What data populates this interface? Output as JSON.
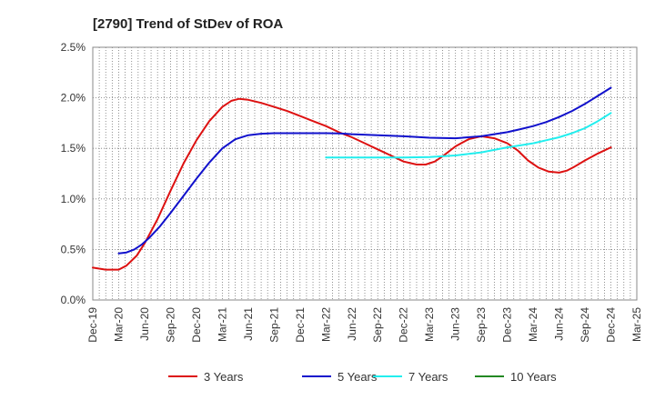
{
  "chart_data": {
    "type": "line",
    "title": "[2790]  Trend of StDev of ROA",
    "xlabel": "",
    "ylabel": "",
    "x_categories": [
      "Dec-19",
      "Mar-20",
      "Jun-20",
      "Sep-20",
      "Dec-20",
      "Mar-21",
      "Jun-21",
      "Sep-21",
      "Dec-21",
      "Mar-22",
      "Jun-22",
      "Sep-22",
      "Dec-22",
      "Mar-23",
      "Jun-23",
      "Sep-23",
      "Dec-23",
      "Mar-24",
      "Jun-24",
      "Sep-24",
      "Dec-24",
      "Mar-25"
    ],
    "y_ticks": [
      "0.0%",
      "0.5%",
      "1.0%",
      "1.5%",
      "2.0%",
      "2.5%"
    ],
    "ylim": [
      0,
      2.5
    ],
    "grid": true,
    "legend_position": "bottom",
    "series": [
      {
        "name": "3 Years",
        "color": "#dd1111",
        "points": [
          [
            0,
            0.32
          ],
          [
            0.5,
            0.3
          ],
          [
            1,
            0.3
          ],
          [
            1.3,
            0.34
          ],
          [
            1.7,
            0.44
          ],
          [
            2,
            0.56
          ],
          [
            2.5,
            0.8
          ],
          [
            3,
            1.08
          ],
          [
            3.5,
            1.35
          ],
          [
            4,
            1.58
          ],
          [
            4.5,
            1.77
          ],
          [
            5,
            1.91
          ],
          [
            5.35,
            1.97
          ],
          [
            5.65,
            1.99
          ],
          [
            6,
            1.98
          ],
          [
            6.5,
            1.95
          ],
          [
            7,
            1.91
          ],
          [
            7.5,
            1.87
          ],
          [
            8,
            1.82
          ],
          [
            8.5,
            1.77
          ],
          [
            9,
            1.72
          ],
          [
            9.5,
            1.66
          ],
          [
            10,
            1.61
          ],
          [
            10.5,
            1.55
          ],
          [
            11,
            1.49
          ],
          [
            11.5,
            1.43
          ],
          [
            12,
            1.37
          ],
          [
            12.5,
            1.34
          ],
          [
            12.85,
            1.34
          ],
          [
            13.2,
            1.37
          ],
          [
            13.5,
            1.42
          ],
          [
            14,
            1.52
          ],
          [
            14.5,
            1.59
          ],
          [
            15,
            1.62
          ],
          [
            15.5,
            1.6
          ],
          [
            16,
            1.55
          ],
          [
            16.4,
            1.48
          ],
          [
            16.8,
            1.38
          ],
          [
            17.2,
            1.31
          ],
          [
            17.6,
            1.27
          ],
          [
            18,
            1.26
          ],
          [
            18.3,
            1.28
          ],
          [
            18.6,
            1.32
          ],
          [
            19,
            1.38
          ],
          [
            19.5,
            1.45
          ],
          [
            20,
            1.51
          ]
        ]
      },
      {
        "name": "5 Years",
        "color": "#1111cc",
        "points": [
          [
            1,
            0.46
          ],
          [
            1.3,
            0.47
          ],
          [
            1.6,
            0.5
          ],
          [
            1.9,
            0.55
          ],
          [
            2.2,
            0.62
          ],
          [
            2.6,
            0.73
          ],
          [
            3,
            0.86
          ],
          [
            3.5,
            1.03
          ],
          [
            4,
            1.2
          ],
          [
            4.5,
            1.36
          ],
          [
            5,
            1.5
          ],
          [
            5.5,
            1.59
          ],
          [
            6,
            1.63
          ],
          [
            6.5,
            1.645
          ],
          [
            7,
            1.65
          ],
          [
            8,
            1.65
          ],
          [
            9,
            1.65
          ],
          [
            9.5,
            1.648
          ],
          [
            10,
            1.64
          ],
          [
            11,
            1.63
          ],
          [
            12,
            1.62
          ],
          [
            13,
            1.605
          ],
          [
            14,
            1.6
          ],
          [
            15,
            1.62
          ],
          [
            15.5,
            1.64
          ],
          [
            16,
            1.66
          ],
          [
            16.5,
            1.69
          ],
          [
            17,
            1.72
          ],
          [
            17.5,
            1.76
          ],
          [
            18,
            1.81
          ],
          [
            18.5,
            1.87
          ],
          [
            19,
            1.94
          ],
          [
            19.5,
            2.02
          ],
          [
            20,
            2.1
          ]
        ]
      },
      {
        "name": "7 Years",
        "color": "#22eeee",
        "points": [
          [
            9,
            1.41
          ],
          [
            10,
            1.41
          ],
          [
            11,
            1.41
          ],
          [
            12,
            1.41
          ],
          [
            13,
            1.415
          ],
          [
            14,
            1.43
          ],
          [
            15,
            1.46
          ],
          [
            16,
            1.51
          ],
          [
            17,
            1.55
          ],
          [
            17.5,
            1.58
          ],
          [
            18,
            1.61
          ],
          [
            18.5,
            1.65
          ],
          [
            19,
            1.7
          ],
          [
            19.5,
            1.77
          ],
          [
            20,
            1.85
          ]
        ]
      },
      {
        "name": "10 Years",
        "color": "#228822",
        "points": []
      }
    ]
  }
}
